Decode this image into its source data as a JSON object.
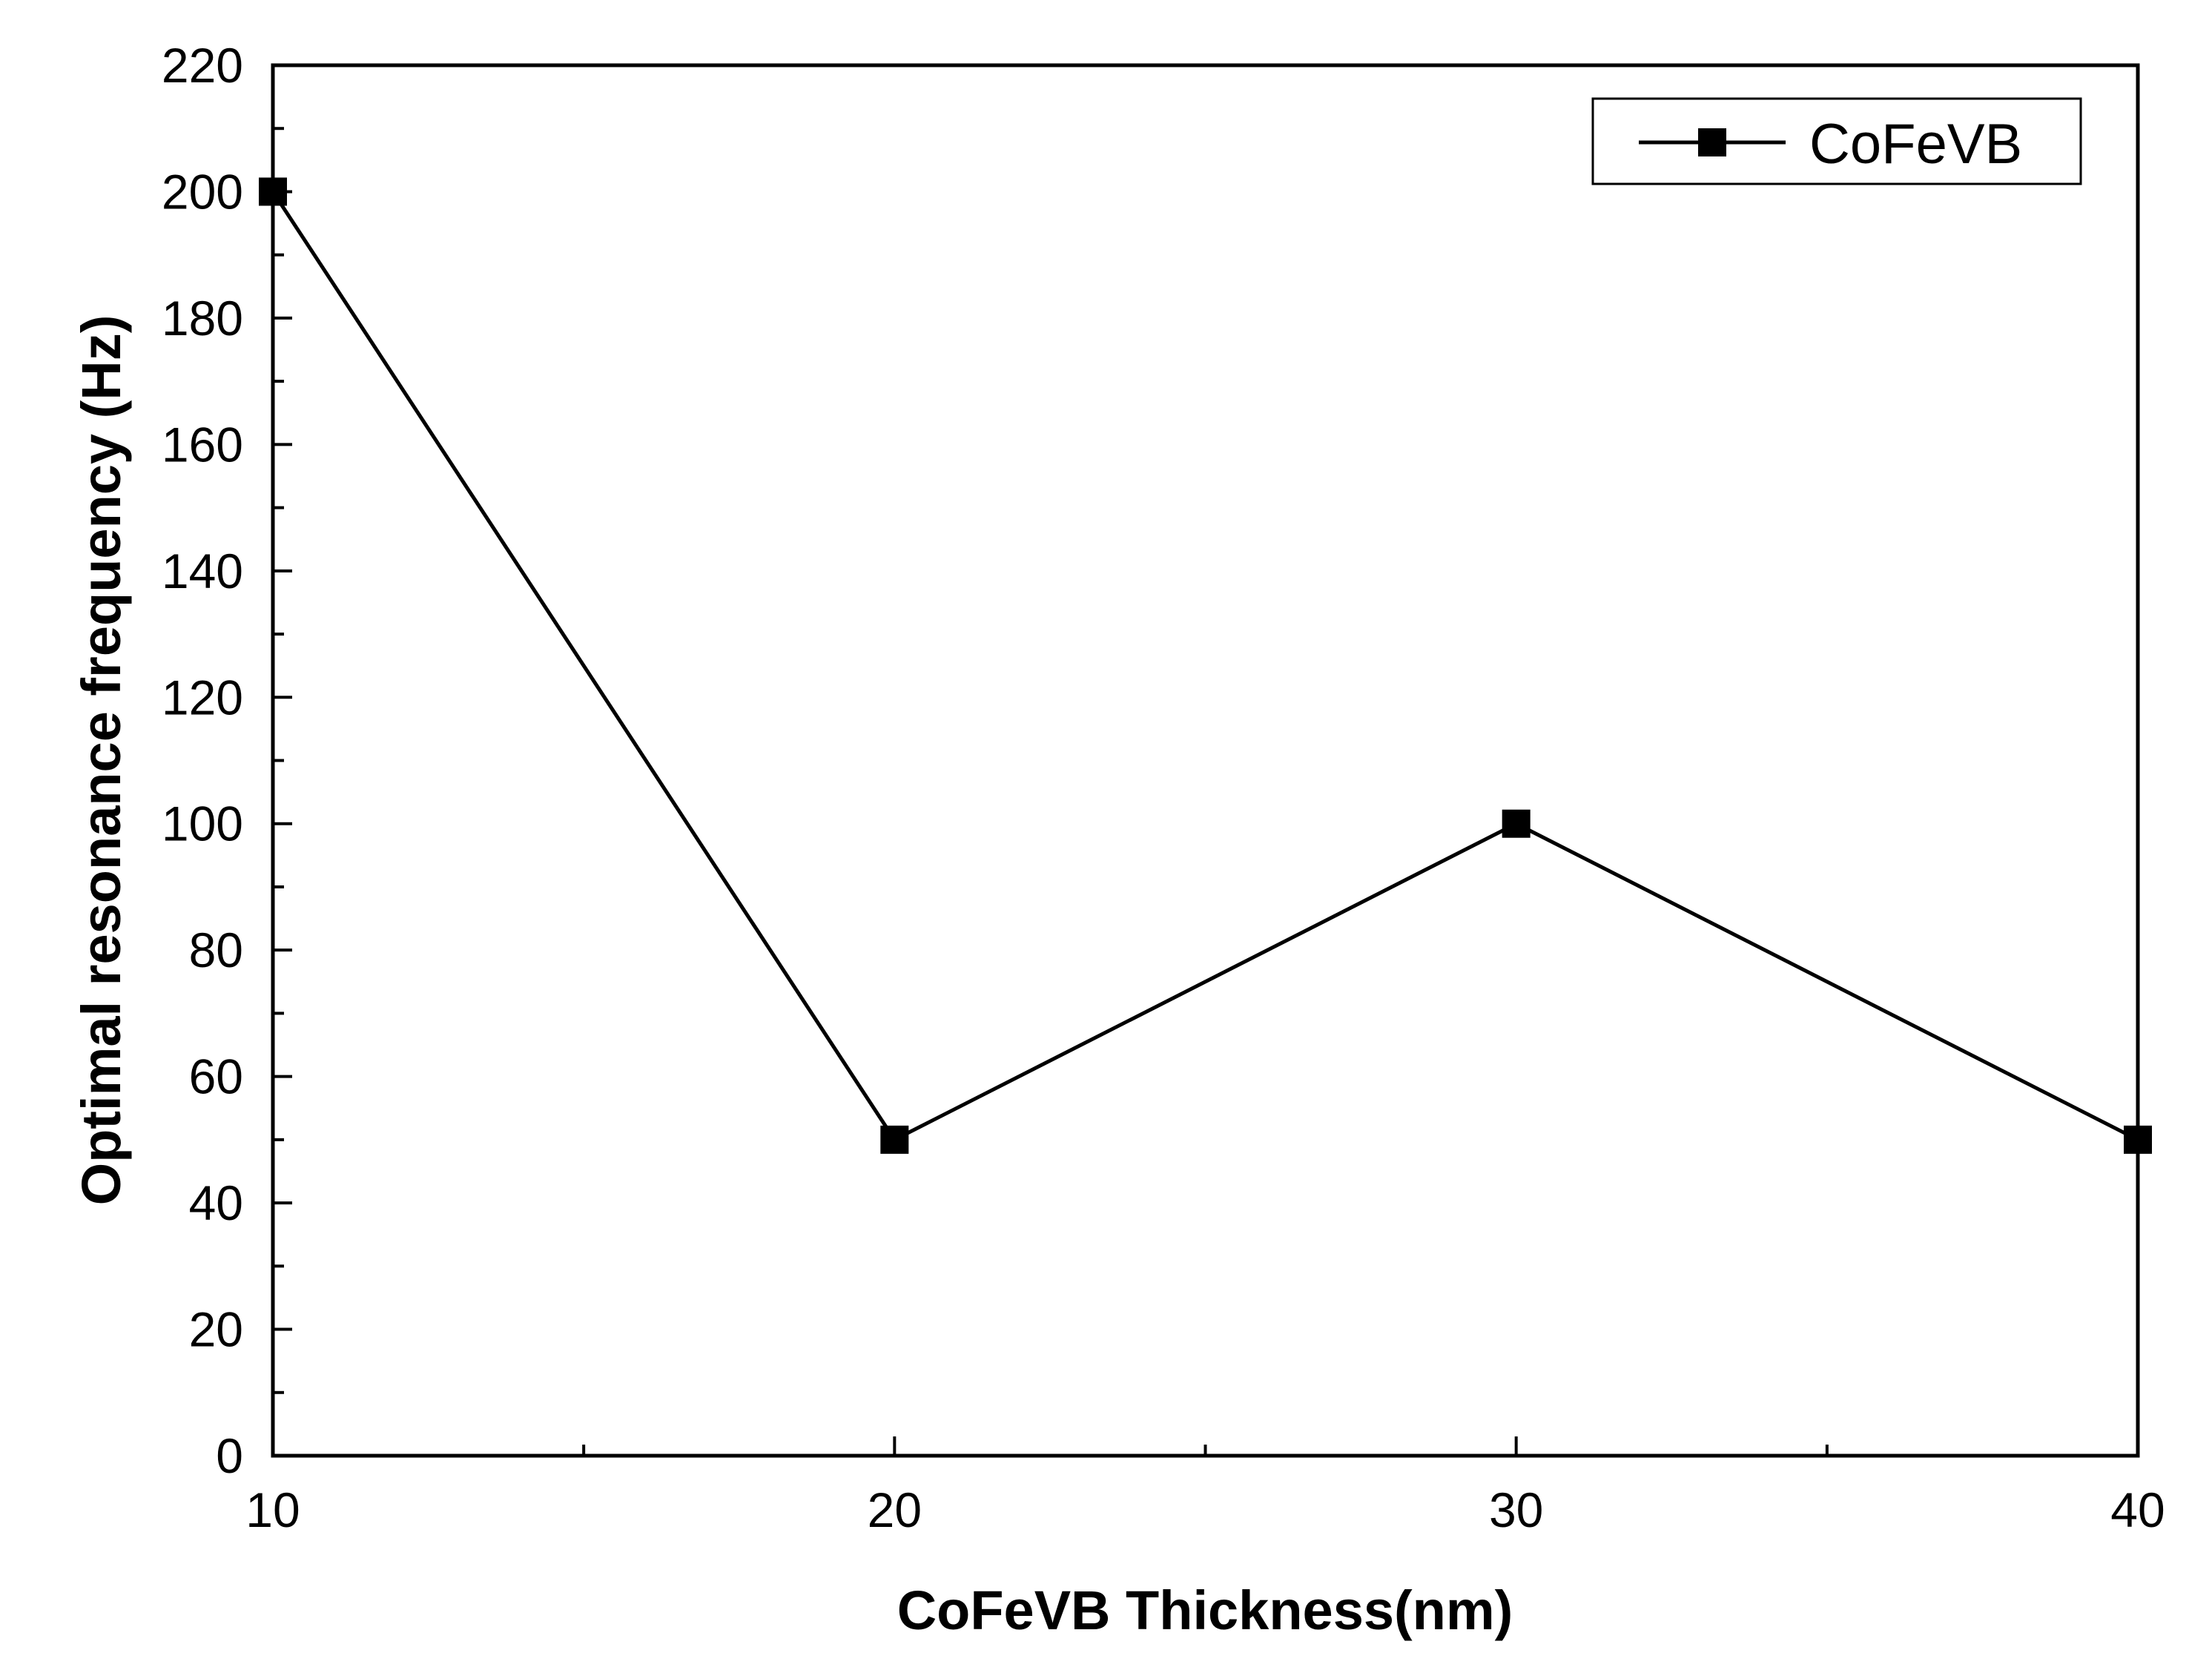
{
  "chart_data": {
    "type": "line",
    "title": "",
    "xlabel": "CoFeVB Thickness(nm)",
    "ylabel": "Optimal resonance frequency (Hz)",
    "xlim": [
      10,
      40
    ],
    "ylim": [
      0,
      220
    ],
    "x_ticks": [
      10,
      20,
      30,
      40
    ],
    "y_ticks": [
      0,
      20,
      40,
      60,
      80,
      100,
      120,
      140,
      160,
      180,
      200,
      220
    ],
    "x_minor_step": 5,
    "y_minor_step": 10,
    "grid": false,
    "legend_position": "top-right",
    "series": [
      {
        "name": "CoFeVB",
        "marker": "square",
        "color": "#000000",
        "x": [
          10,
          20,
          30,
          40
        ],
        "y": [
          200,
          50,
          100,
          50
        ]
      }
    ]
  }
}
